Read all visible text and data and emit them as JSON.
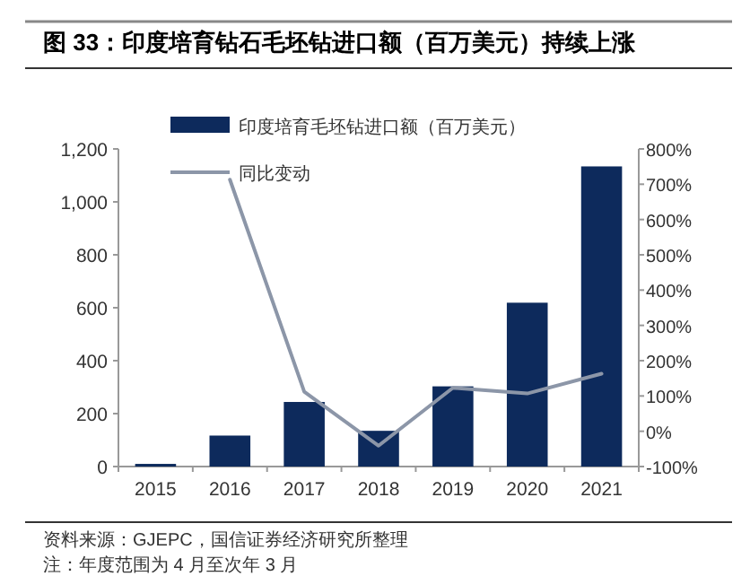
{
  "chart_data": {
    "type": "bar",
    "title": "图 33：印度培育钻石毛坯钻进口额（百万美元）持续上涨",
    "categories": [
      "2015",
      "2016",
      "2017",
      "2018",
      "2019",
      "2020",
      "2021"
    ],
    "series": [
      {
        "name": "印度培育毛坯钻进口额（百万美元）",
        "color": "#0d2a5c",
        "values": [
          10,
          117,
          244,
          135,
          303,
          619,
          1134
        ]
      },
      {
        "name": "同比变动",
        "type": "line",
        "axis": "y2",
        "color": "#8c96a8",
        "values": [
          null,
          713,
          112,
          -41,
          123,
          107,
          163
        ]
      }
    ],
    "ylim": [
      0,
      1200
    ],
    "yticks": [
      0,
      200,
      400,
      600,
      800,
      {
        "value": 1000,
        "label": "1,000"
      },
      {
        "value": 1200,
        "label": "1,200"
      }
    ],
    "y2lim": [
      -100,
      800
    ],
    "y2ticks": [
      {
        "value": -100,
        "label": "-100%"
      },
      {
        "value": 0,
        "label": "0%"
      },
      {
        "value": 100,
        "label": "100%"
      },
      {
        "value": 200,
        "label": "200%"
      },
      {
        "value": 300,
        "label": "300%"
      },
      {
        "value": 400,
        "label": "400%"
      },
      {
        "value": 500,
        "label": "500%"
      },
      {
        "value": 600,
        "label": "600%"
      },
      {
        "value": 700,
        "label": "700%"
      },
      {
        "value": 800,
        "label": "800%"
      }
    ],
    "legend": "top",
    "annotations": [
      "资料来源：GJEPC，国信证券经济研究所整理",
      "注：年度范围为 4 月至次年 3 月"
    ]
  }
}
